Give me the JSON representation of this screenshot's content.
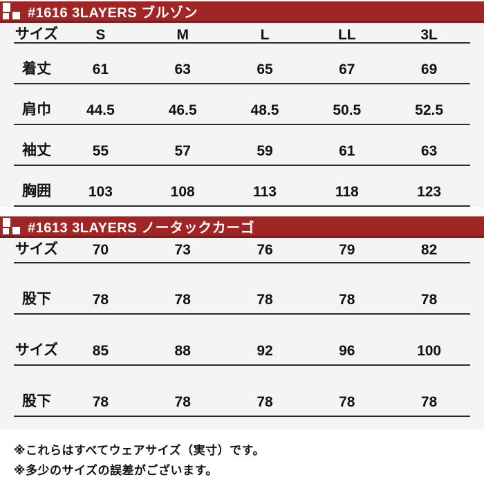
{
  "page": {
    "background": "#ffffff",
    "table_background": "#f4f4f4",
    "accent_red": "#a12525",
    "accent_red_dark": "#7f1b1b",
    "rule_color": "#2b2b2b",
    "text_color": "#111111"
  },
  "tables": [
    {
      "title": "#1616 3LAYERS ブルゾン",
      "header": [
        "サイズ",
        "S",
        "M",
        "L",
        "LL",
        "3L"
      ],
      "rows": [
        {
          "label": "着丈",
          "values": [
            "61",
            "63",
            "65",
            "67",
            "69"
          ]
        },
        {
          "label": "肩巾",
          "values": [
            "44.5",
            "46.5",
            "48.5",
            "50.5",
            "52.5"
          ]
        },
        {
          "label": "袖丈",
          "values": [
            "55",
            "57",
            "59",
            "61",
            "63"
          ]
        },
        {
          "label": "胸囲",
          "values": [
            "103",
            "108",
            "113",
            "118",
            "123"
          ]
        }
      ]
    },
    {
      "title": "#1613 3LAYERS ノータックカーゴ",
      "rows": [
        {
          "label": "サイズ",
          "values": [
            "70",
            "73",
            "76",
            "79",
            "82"
          ]
        },
        {
          "label": "股下",
          "values": [
            "78",
            "78",
            "78",
            "78",
            "78"
          ]
        },
        {
          "label": "サイズ",
          "values": [
            "85",
            "88",
            "92",
            "96",
            "100"
          ]
        },
        {
          "label": "股下",
          "values": [
            "78",
            "78",
            "78",
            "78",
            "78"
          ]
        }
      ]
    }
  ],
  "notes": [
    "※これらはすべてウェアサイズ（実寸）です。",
    "※多少のサイズの誤差がございます。"
  ]
}
